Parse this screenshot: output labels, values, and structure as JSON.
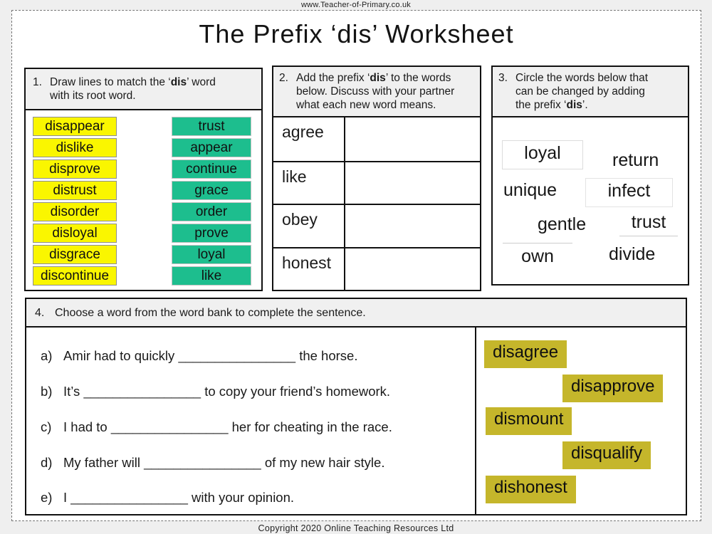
{
  "page": {
    "url_header": "www.Teacher-of-Primary.co.uk",
    "title": "The Prefix ‘dis’ Worksheet",
    "footer": "Copyright 2020 Online Teaching Resources Ltd"
  },
  "colors": {
    "dis_word_card_bg": "#FAF600",
    "root_word_card_bg": "#1DBE8E",
    "word_bank_bg": "#C5B62B",
    "section_header_bg": "#F0F0F0"
  },
  "section1": {
    "header": {
      "num": "1.",
      "pre": "Draw lines to match the ‘",
      "bold": "dis",
      "post": "’ word with its root word."
    },
    "dis_words": [
      "disappear",
      "dislike",
      "disprove",
      "distrust",
      "disorder",
      "disloyal",
      "disgrace",
      "discontinue"
    ],
    "root_words": [
      "trust",
      "appear",
      "continue",
      "grace",
      "order",
      "prove",
      "loyal",
      "like"
    ]
  },
  "section2": {
    "header": {
      "num": "2.",
      "pre": "Add the prefix ‘",
      "bold": "dis",
      "post": "’ to the words below. Discuss with your partner what each new word means."
    },
    "rows": [
      "agree",
      "like",
      "obey",
      "honest"
    ]
  },
  "section3": {
    "header": {
      "num": "3.",
      "pre": "Circle the words below that can be changed by adding the prefix ‘",
      "bold": "dis",
      "post": "’."
    },
    "words": [
      "loyal",
      "return",
      "unique",
      "infect",
      "gentle",
      "trust",
      "own",
      "divide"
    ]
  },
  "section4": {
    "header": {
      "num": "4.",
      "text": "Choose a word from the word bank to complete the sentence."
    },
    "sentences": [
      {
        "label": "a)",
        "before": "Amir had to quickly ",
        "blank": "________________",
        "after": " the horse."
      },
      {
        "label": "b)",
        "before": "It’s ",
        "blank": "________________",
        "after": " to copy your friend’s homework."
      },
      {
        "label": "c)",
        "before": "I had to ",
        "blank": "________________",
        "after": " her for cheating in the race."
      },
      {
        "label": "d)",
        "before": "My father will ",
        "blank": "________________",
        "after": " of my new hair style."
      },
      {
        "label": "e)",
        "before": "I ",
        "blank": "________________",
        "after": " with your opinion."
      }
    ],
    "word_bank": [
      "disagree",
      "disapprove",
      "dismount",
      "disqualify",
      "dishonest"
    ]
  }
}
